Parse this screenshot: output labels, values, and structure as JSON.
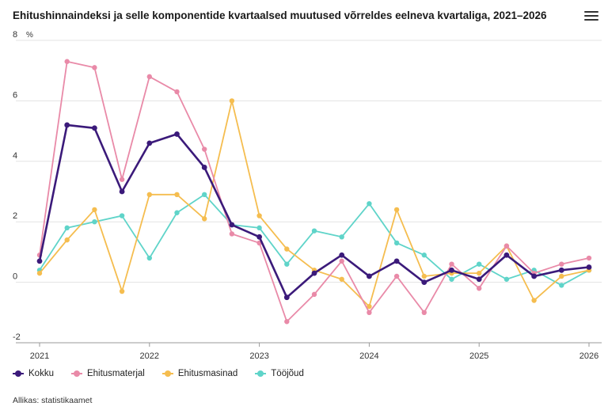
{
  "title": "Ehitushinnaindeksi ja selle komponentide kvartaalsed muutused võrreldes eelneva kvartaliga, 2021–2026",
  "menu_icon": "hamburger-menu-icon",
  "source": "Allikas: statistikaamet",
  "chart_data": {
    "type": "line",
    "title": "Ehitushinnaindeksi ja selle komponentide kvartaalsed muutused võrreldes eelneva kvartaliga, 2021–2026",
    "ylabel": "%",
    "ylim": [
      -2,
      8
    ],
    "yticks": [
      "-2",
      "0",
      "2",
      "4",
      "6",
      "8"
    ],
    "xlim": [
      2021,
      2026
    ],
    "xticks": [
      "2021",
      "2022",
      "2023",
      "2024",
      "2025",
      "2026"
    ],
    "x": [
      2021.0,
      2021.25,
      2021.5,
      2021.75,
      2022.0,
      2022.25,
      2022.5,
      2022.75,
      2023.0,
      2023.25,
      2023.5,
      2023.75,
      2024.0,
      2024.25,
      2024.5,
      2024.75,
      2025.0,
      2025.25,
      2025.5,
      2025.75,
      2026.0
    ],
    "grid": true,
    "legend_position": "bottom-left",
    "series": [
      {
        "name": "Kokku",
        "color": "#3b1a7a",
        "values": [
          0.7,
          5.2,
          5.1,
          3.0,
          4.6,
          4.9,
          3.8,
          1.9,
          1.5,
          -0.5,
          0.3,
          0.9,
          0.2,
          0.7,
          0.0,
          0.4,
          0.1,
          0.9,
          0.2,
          0.4,
          0.5
        ]
      },
      {
        "name": "Ehitusmaterjal",
        "color": "#e98aa8",
        "values": [
          0.9,
          7.3,
          7.1,
          3.4,
          6.8,
          6.3,
          4.4,
          1.6,
          1.3,
          -1.3,
          -0.4,
          0.7,
          -1.0,
          0.2,
          -1.0,
          0.6,
          -0.2,
          1.2,
          0.3,
          0.6,
          0.8
        ]
      },
      {
        "name": "Ehitusmasinad",
        "color": "#f5bd4f",
        "values": [
          0.3,
          1.4,
          2.4,
          -0.3,
          2.9,
          2.9,
          2.1,
          6.0,
          2.2,
          1.1,
          0.4,
          0.1,
          -0.8,
          2.4,
          0.2,
          0.3,
          0.3,
          1.2,
          -0.6,
          0.2,
          0.4
        ]
      },
      {
        "name": "Tööjõud",
        "color": "#5fd4c9",
        "values": [
          0.4,
          1.8,
          2.0,
          2.2,
          0.8,
          2.3,
          2.9,
          1.9,
          1.8,
          0.6,
          1.7,
          1.5,
          2.6,
          1.3,
          0.9,
          0.1,
          0.6,
          0.1,
          0.4,
          -0.1,
          0.4
        ]
      }
    ]
  }
}
